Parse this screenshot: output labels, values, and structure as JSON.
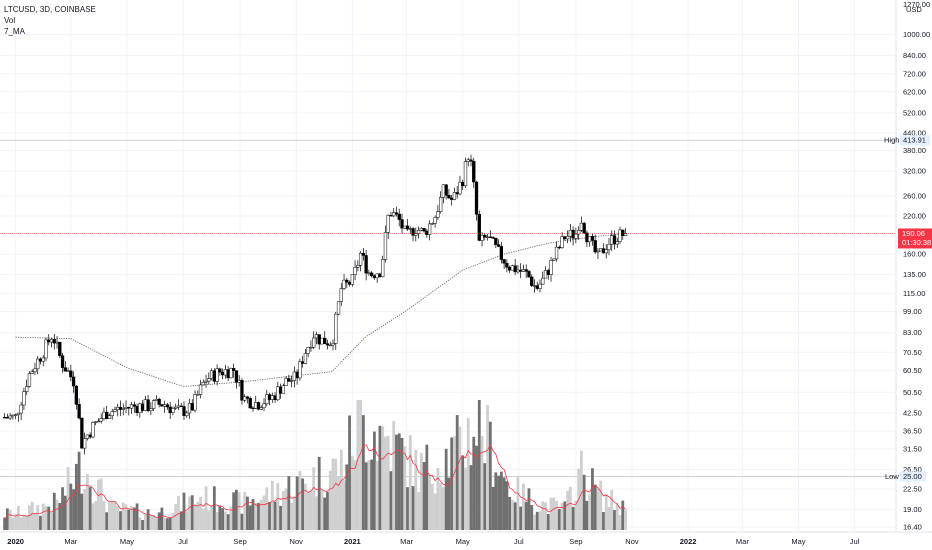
{
  "legend": {
    "symbol_line": "LTCUSD, 3D, COINBASE",
    "volume_label": "Vol",
    "ma_label": "7_MA"
  },
  "axis": {
    "currency": "USD",
    "top_tick_partial": "1270.00",
    "price_ticks": [
      "1000.00",
      "840.00",
      "720.00",
      "620.00",
      "520.00",
      "440.00",
      "380.00",
      "320.00",
      "260.00",
      "220.00",
      "160.00",
      "135.00",
      "115.00",
      "99.00",
      "83.00",
      "70.50",
      "60.50",
      "50.50",
      "42.50",
      "36.50",
      "31.50",
      "26.50",
      "22.50",
      "19.00",
      "16.40"
    ],
    "time_ticks": [
      {
        "label": "2020",
        "bold": true
      },
      {
        "label": "Mar",
        "bold": false
      },
      {
        "label": "May",
        "bold": false
      },
      {
        "label": "Jul",
        "bold": false
      },
      {
        "label": "Sep",
        "bold": false
      },
      {
        "label": "Nov",
        "bold": false
      },
      {
        "label": "2021",
        "bold": true
      },
      {
        "label": "Mar",
        "bold": false
      },
      {
        "label": "May",
        "bold": false
      },
      {
        "label": "Jul",
        "bold": false
      },
      {
        "label": "Sep",
        "bold": false
      },
      {
        "label": "Nov",
        "bold": false
      },
      {
        "label": "2022",
        "bold": true
      },
      {
        "label": "Mar",
        "bold": false
      },
      {
        "label": "May",
        "bold": false
      },
      {
        "label": "Jul",
        "bold": false
      }
    ]
  },
  "markers": {
    "high_label": "High",
    "high_value": "413.91",
    "low_label": "Low",
    "low_value": "25.00",
    "current_price": "190.06",
    "countdown": "01:30:38"
  },
  "colors": {
    "candle_up_body": "#ffffff",
    "candle_down_body": "#000000",
    "candle_outline": "#000000",
    "volume_up": "#cfcfcf",
    "volume_down": "#707070",
    "volume_ma": "#f23645",
    "price_ma": "#555555",
    "price_line": "#f23645",
    "grid": "#f0f3fa"
  },
  "chart_data": {
    "type": "candlestick",
    "interval": "3D",
    "symbol": "LTCUSD",
    "exchange": "COINBASE",
    "y_scale": "log",
    "ylim": [
      16,
      1290
    ],
    "series": [
      {
        "name": "LTCUSD",
        "kind": "close",
        "points": [
          [
            "2020-01-01",
            41
          ],
          [
            "2020-01-15",
            58
          ],
          [
            "2020-02-01",
            72
          ],
          [
            "2020-02-10",
            82
          ],
          [
            "2020-02-20",
            65
          ],
          [
            "2020-03-05",
            55
          ],
          [
            "2020-03-13",
            33
          ],
          [
            "2020-03-25",
            38
          ],
          [
            "2020-04-10",
            43
          ],
          [
            "2020-04-25",
            44
          ],
          [
            "2020-05-10",
            45
          ],
          [
            "2020-05-25",
            45
          ],
          [
            "2020-06-10",
            46
          ],
          [
            "2020-06-25",
            43
          ],
          [
            "2020-07-10",
            44
          ],
          [
            "2020-07-25",
            56
          ],
          [
            "2020-08-10",
            60
          ],
          [
            "2020-08-25",
            61
          ],
          [
            "2020-09-05",
            48
          ],
          [
            "2020-09-20",
            46
          ],
          [
            "2020-10-05",
            48
          ],
          [
            "2020-10-20",
            55
          ],
          [
            "2020-11-01",
            57
          ],
          [
            "2020-11-10",
            70
          ],
          [
            "2020-11-20",
            82
          ],
          [
            "2020-11-28",
            78
          ],
          [
            "2020-12-10",
            77
          ],
          [
            "2020-12-20",
            120
          ],
          [
            "2021-01-01",
            128
          ],
          [
            "2021-01-10",
            160
          ],
          [
            "2021-01-20",
            135
          ],
          [
            "2021-02-01",
            140
          ],
          [
            "2021-02-10",
            230
          ],
          [
            "2021-02-20",
            215
          ],
          [
            "2021-03-01",
            185
          ],
          [
            "2021-03-10",
            200
          ],
          [
            "2021-03-20",
            190
          ],
          [
            "2021-04-01",
            220
          ],
          [
            "2021-04-10",
            270
          ],
          [
            "2021-04-20",
            250
          ],
          [
            "2021-05-01",
            300
          ],
          [
            "2021-05-08",
            380
          ],
          [
            "2021-05-13",
            280
          ],
          [
            "2021-05-19",
            175
          ],
          [
            "2021-05-28",
            185
          ],
          [
            "2021-06-10",
            160
          ],
          [
            "2021-06-20",
            145
          ],
          [
            "2021-07-01",
            140
          ],
          [
            "2021-07-10",
            135
          ],
          [
            "2021-07-20",
            120
          ],
          [
            "2021-07-28",
            130
          ],
          [
            "2021-08-10",
            160
          ],
          [
            "2021-08-20",
            185
          ],
          [
            "2021-09-01",
            190
          ],
          [
            "2021-09-06",
            220
          ],
          [
            "2021-09-15",
            180
          ],
          [
            "2021-09-25",
            155
          ],
          [
            "2021-10-05",
            175
          ],
          [
            "2021-10-15",
            185
          ],
          [
            "2021-10-25",
            190.06
          ]
        ]
      },
      {
        "name": "7_MA",
        "kind": "moving_average",
        "points": [
          [
            "2020-01-01",
            80
          ],
          [
            "2020-03-01",
            79
          ],
          [
            "2020-05-01",
            62
          ],
          [
            "2020-07-01",
            53
          ],
          [
            "2020-09-01",
            55
          ],
          [
            "2020-11-01",
            58
          ],
          [
            "2020-12-10",
            60
          ],
          [
            "2021-01-15",
            80
          ],
          [
            "2021-03-01",
            100
          ],
          [
            "2021-05-01",
            140
          ],
          [
            "2021-06-15",
            160
          ],
          [
            "2021-08-01",
            175
          ],
          [
            "2021-09-20",
            185
          ],
          [
            "2021-10-25",
            190
          ]
        ]
      },
      {
        "name": "Vol",
        "kind": "volume_relative",
        "points": [
          [
            "2020-01-01",
            0.15
          ],
          [
            "2020-02-15",
            0.25
          ],
          [
            "2020-03-13",
            0.6
          ],
          [
            "2020-04-15",
            0.2
          ],
          [
            "2020-06-01",
            0.15
          ],
          [
            "2020-07-20",
            0.3
          ],
          [
            "2020-09-05",
            0.25
          ],
          [
            "2020-11-10",
            0.45
          ],
          [
            "2020-12-20",
            0.6
          ],
          [
            "2021-01-10",
            1.0
          ],
          [
            "2021-02-10",
            0.85
          ],
          [
            "2021-03-15",
            0.55
          ],
          [
            "2021-04-20",
            0.7
          ],
          [
            "2021-05-19",
            1.0
          ],
          [
            "2021-06-20",
            0.4
          ],
          [
            "2021-07-20",
            0.25
          ],
          [
            "2021-08-20",
            0.2
          ],
          [
            "2021-09-06",
            0.55
          ],
          [
            "2021-10-01",
            0.3
          ],
          [
            "2021-10-25",
            0.2
          ]
        ]
      }
    ],
    "high": 413.91,
    "low": 25.0,
    "last": 190.06,
    "x_ticks": [
      "2020",
      "Mar",
      "May",
      "Jul",
      "Sep",
      "Nov",
      "2021",
      "Mar",
      "May",
      "Jul",
      "Sep",
      "Nov",
      "2022",
      "Mar",
      "May",
      "Jul"
    ],
    "y_ticks": [
      1000,
      840,
      720,
      620,
      520,
      440,
      380,
      320,
      260,
      220,
      160,
      135,
      115,
      99,
      83,
      70.5,
      60.5,
      50.5,
      42.5,
      36.5,
      31.5,
      26.5,
      22.5,
      19,
      16.4
    ]
  }
}
